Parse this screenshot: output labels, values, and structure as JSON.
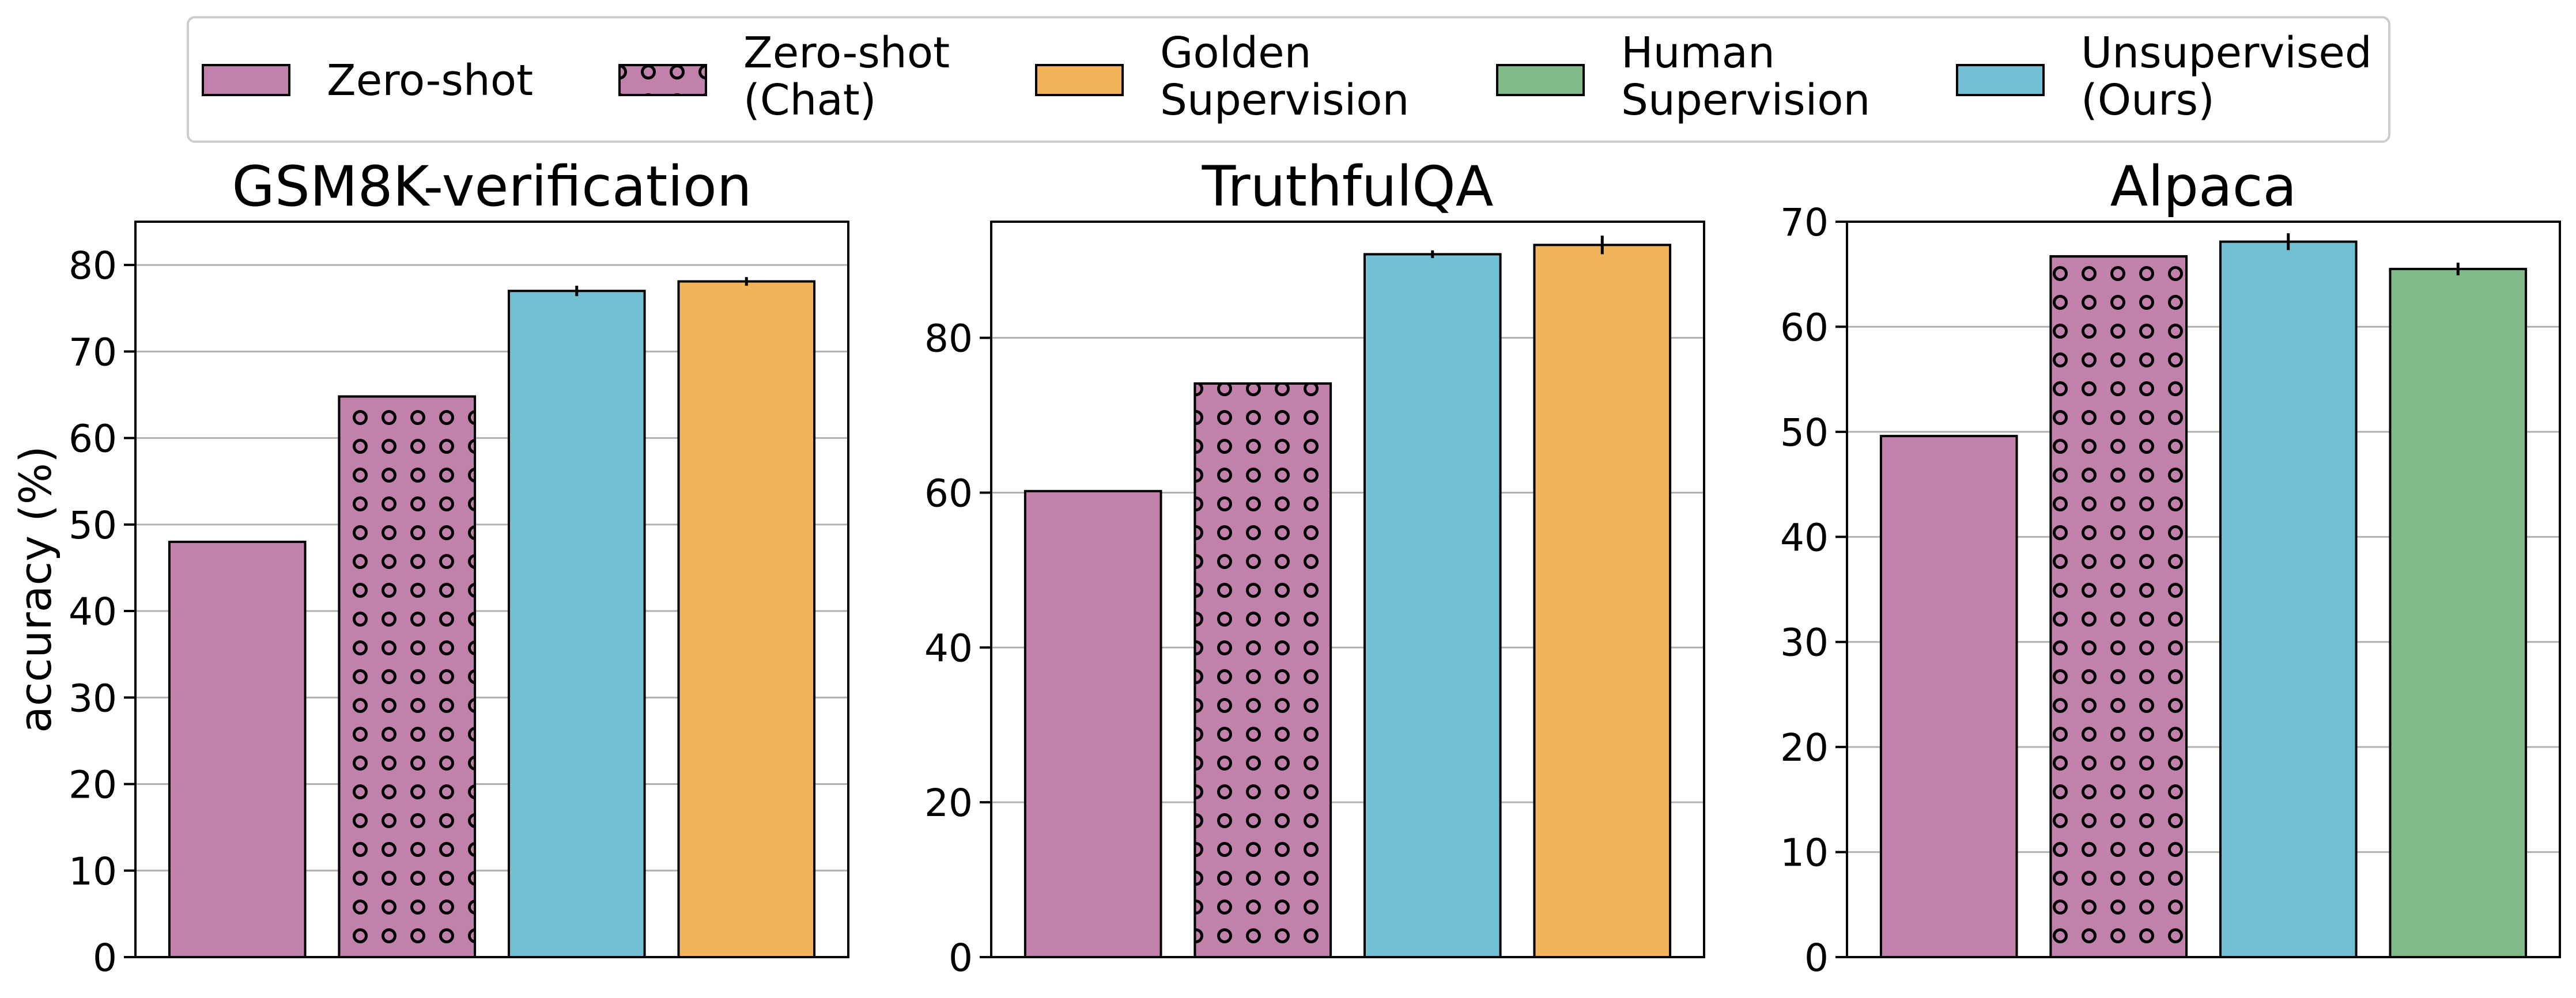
{
  "colors": {
    "zero_shot": "#c081aa",
    "golden": "#f2b45b",
    "human": "#80ba88",
    "unsupervised": "#73bfd4",
    "grid": "#b0b0b0"
  },
  "legend": [
    {
      "key": "zero_shot",
      "lines": [
        "Zero-shot"
      ],
      "pattern": false
    },
    {
      "key": "zero_shot_chat",
      "lines": [
        "Zero-shot",
        "(Chat)"
      ],
      "pattern": true
    },
    {
      "key": "golden",
      "lines": [
        "Golden",
        "Supervision"
      ],
      "pattern": false
    },
    {
      "key": "human",
      "lines": [
        "Human",
        "Supervision"
      ],
      "pattern": false
    },
    {
      "key": "unsupervised",
      "lines": [
        "Unsupervised",
        "(Ours)"
      ],
      "pattern": false
    }
  ],
  "chart_data": [
    {
      "type": "bar",
      "title": "GSM8K-verification",
      "xlabel": "",
      "ylabel": "accuracy (%)",
      "ylim": [
        0,
        85
      ],
      "yticks": [
        0,
        10,
        20,
        30,
        40,
        50,
        60,
        70,
        80
      ],
      "grid": true,
      "categories": [
        "Zero-shot",
        "Zero-shot (Chat)",
        "Unsupervised (Ours)",
        "Golden Supervision"
      ],
      "values": [
        48,
        64.8,
        77,
        78.1
      ],
      "errors": [
        0,
        0,
        0.6,
        0.5
      ],
      "colors": [
        "zero_shot",
        "zero_shot",
        "unsupervised",
        "golden"
      ],
      "patterns": [
        false,
        true,
        false,
        false
      ]
    },
    {
      "type": "bar",
      "title": "TruthfulQA",
      "xlabel": "",
      "ylabel": "",
      "ylim": [
        0,
        95
      ],
      "yticks": [
        0,
        20,
        40,
        60,
        80
      ],
      "grid": true,
      "categories": [
        "Zero-shot",
        "Zero-shot (Chat)",
        "Unsupervised (Ours)",
        "Golden Supervision"
      ],
      "values": [
        60.2,
        74.1,
        90.8,
        92
      ],
      "errors": [
        0,
        0,
        0.5,
        1.2
      ],
      "colors": [
        "zero_shot",
        "zero_shot",
        "unsupervised",
        "golden"
      ],
      "patterns": [
        false,
        true,
        false,
        false
      ]
    },
    {
      "type": "bar",
      "title": "Alpaca",
      "xlabel": "",
      "ylabel": "",
      "ylim": [
        0,
        70
      ],
      "yticks": [
        0,
        10,
        20,
        30,
        40,
        50,
        60,
        70
      ],
      "grid": true,
      "categories": [
        "Zero-shot",
        "Zero-shot (Chat)",
        "Unsupervised (Ours)",
        "Human Supervision"
      ],
      "values": [
        49.6,
        66.7,
        68.1,
        65.5
      ],
      "errors": [
        0,
        0,
        0.8,
        0.6
      ],
      "colors": [
        "zero_shot",
        "zero_shot",
        "unsupervised",
        "human"
      ],
      "patterns": [
        false,
        true,
        false,
        false
      ]
    }
  ]
}
